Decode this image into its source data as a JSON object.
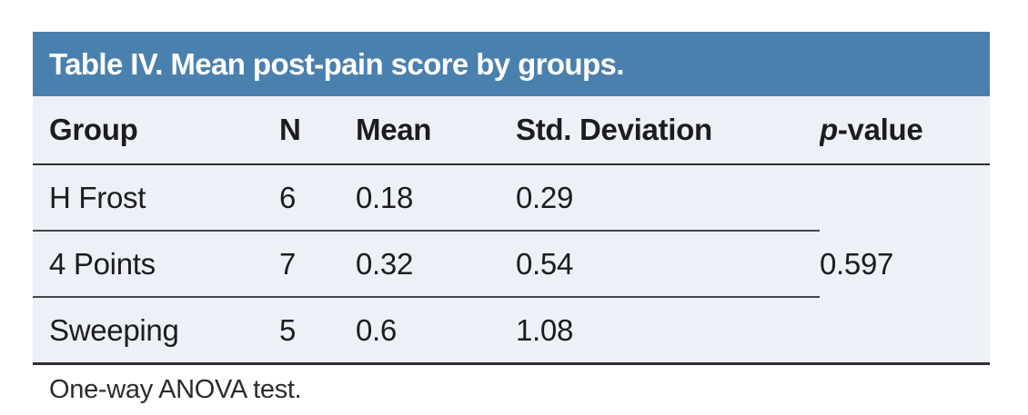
{
  "table": {
    "title": "Table IV. Mean post-pain score by groups.",
    "columns": {
      "group": "Group",
      "n": "N",
      "mean": "Mean",
      "std": "Std. Deviation",
      "p_italic": "p",
      "p_rest": "-value"
    },
    "rows": [
      {
        "group": "H Frost",
        "n": "6",
        "mean": "0.18",
        "std": "0.29"
      },
      {
        "group": "4 Points",
        "n": "7",
        "mean": "0.32",
        "std": "0.54"
      },
      {
        "group": "Sweeping",
        "n": "5",
        "mean": "0.6",
        "std": "1.08"
      }
    ],
    "p_value": "0.597",
    "footnote": "One-way ANOVA test."
  },
  "colors": {
    "header_bg": "#4a80ae",
    "body_bg": "#edf0f7",
    "header_text": "#ffffff",
    "text": "#1c1c1e",
    "rule_dark": "#2e2e33",
    "rule_row": "#46464c",
    "footnote_text": "#2b2b2b"
  }
}
